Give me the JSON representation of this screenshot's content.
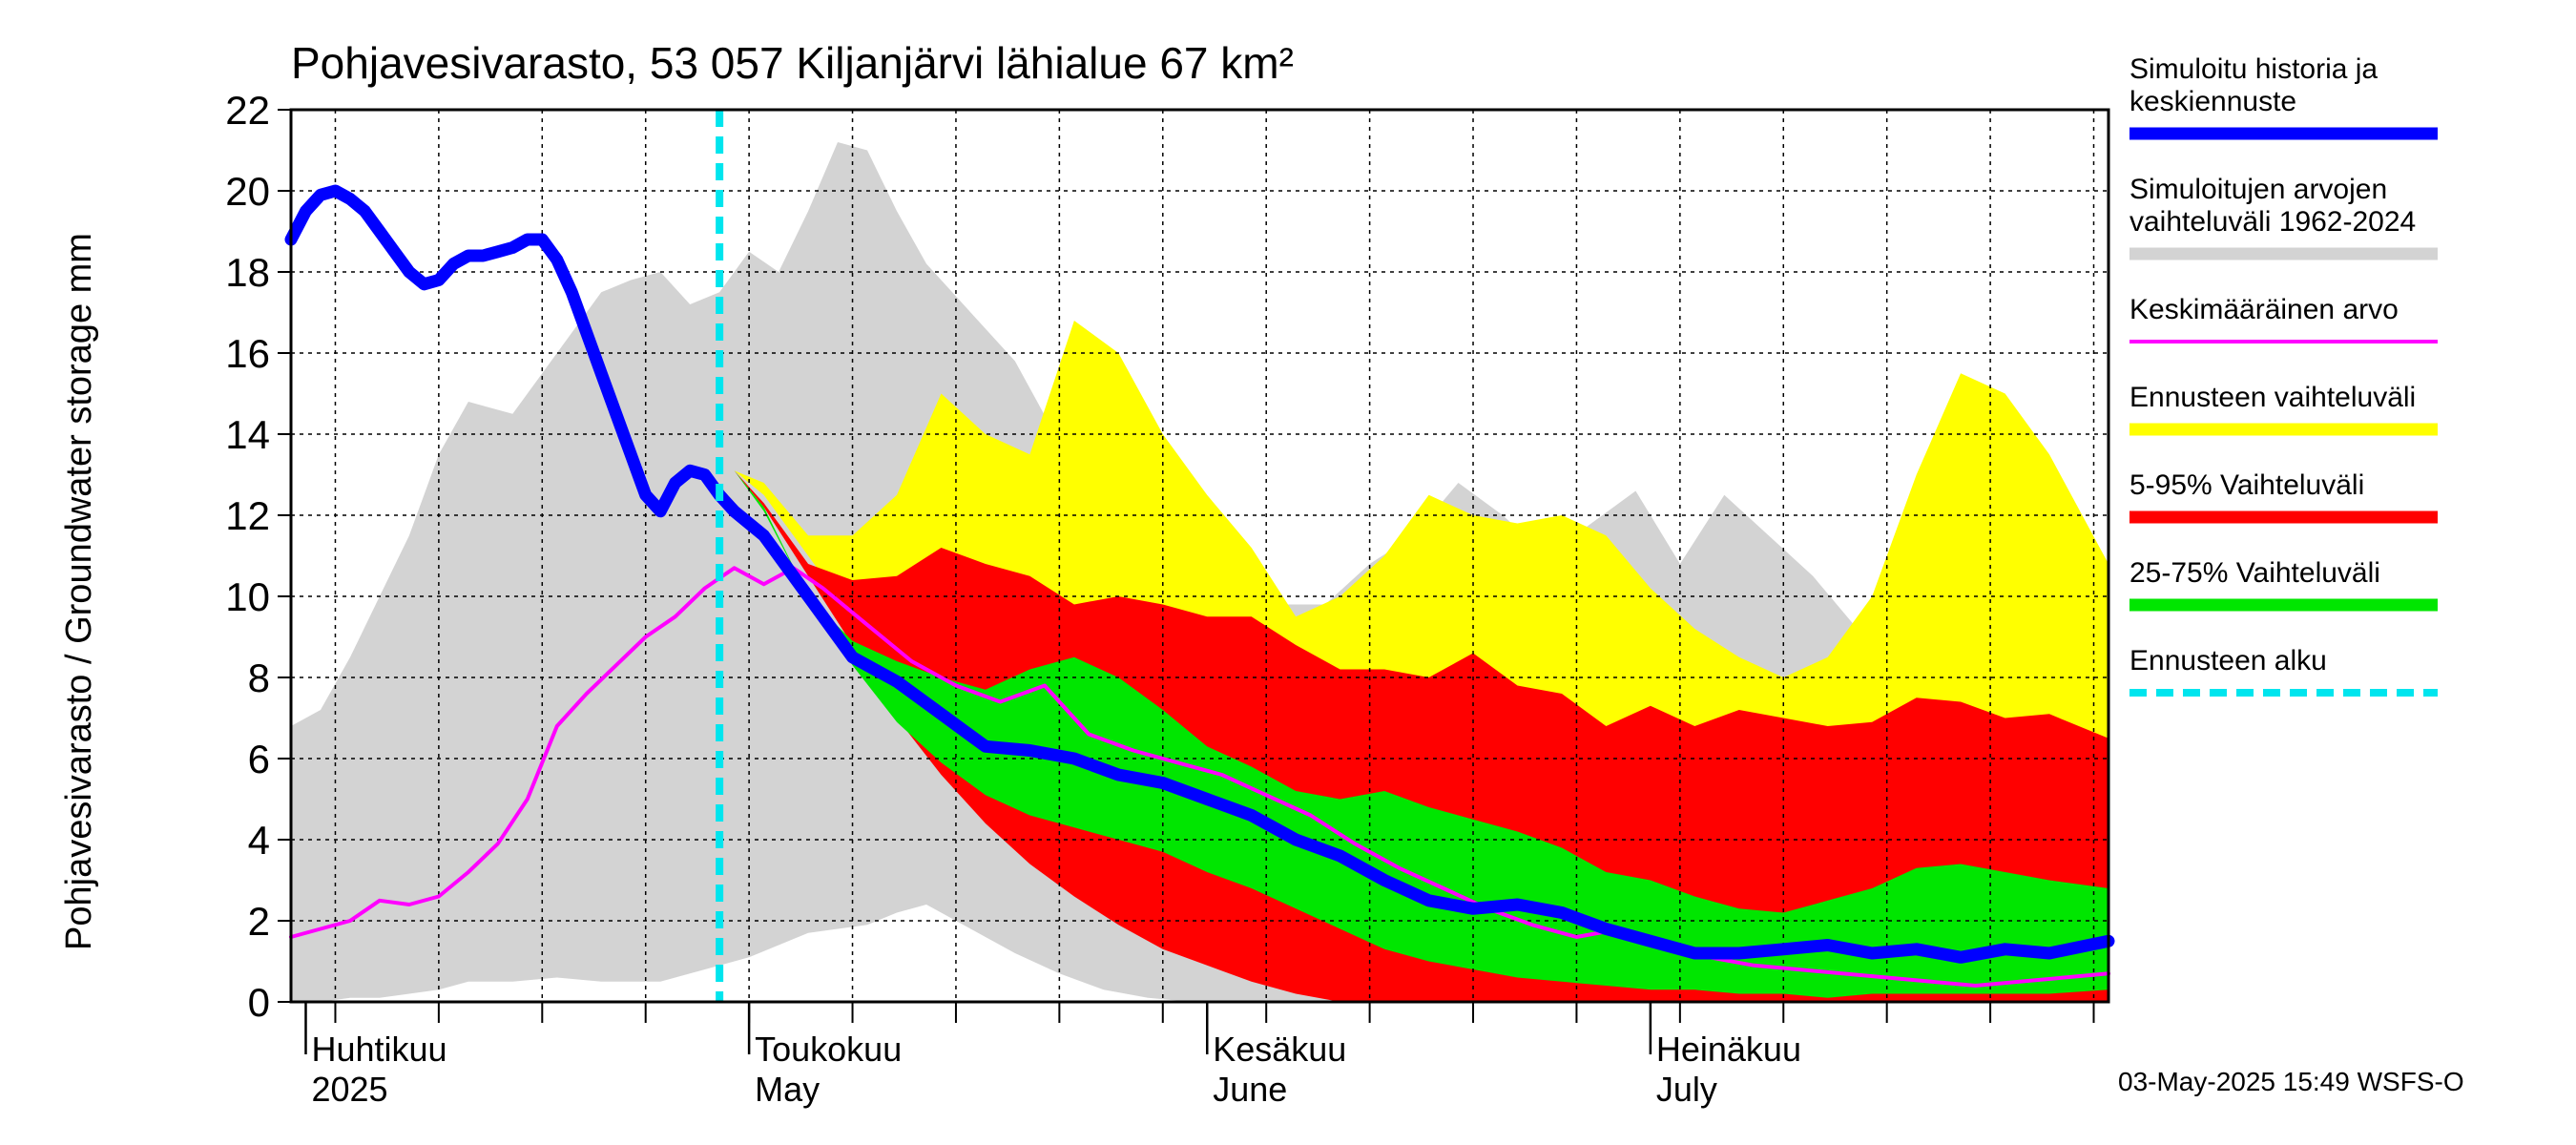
{
  "chart_data": {
    "type": "area",
    "title": "Pohjavesivarasto, 53 057 Kiljanjärvi lähialue 67 km²",
    "ylabel": "Pohjavesivarasto / Groundwater storage   mm",
    "ylim": [
      0,
      22
    ],
    "yticks": [
      0,
      2,
      4,
      6,
      8,
      10,
      12,
      14,
      16,
      18,
      20,
      22
    ],
    "x_start": "2025-03-31",
    "x_end": "2025-08-01",
    "forecast_start": "2025-04-29",
    "month_labels": [
      {
        "fi": "Huhtikuu",
        "en": "2025",
        "date": "2025-04-01"
      },
      {
        "fi": "Toukokuu",
        "en": "May",
        "date": "2025-05-01"
      },
      {
        "fi": "Kesäkuu",
        "en": "June",
        "date": "2025-06-01"
      },
      {
        "fi": "Heinäkuu",
        "en": "July",
        "date": "2025-07-01"
      }
    ],
    "series": [
      {
        "name": "Simuloitujen arvojen vaihteluväli 1962-2024",
        "color": "#d3d3d3",
        "type": "band",
        "x": [
          "2025-03-31",
          "2025-04-02",
          "2025-04-04",
          "2025-04-06",
          "2025-04-08",
          "2025-04-10",
          "2025-04-12",
          "2025-04-15",
          "2025-04-18",
          "2025-04-21",
          "2025-04-23",
          "2025-04-25",
          "2025-04-27",
          "2025-04-29",
          "2025-05-01",
          "2025-05-03",
          "2025-05-05",
          "2025-05-07",
          "2025-05-09",
          "2025-05-11",
          "2025-05-13",
          "2025-05-16",
          "2025-05-19",
          "2025-05-22",
          "2025-05-25",
          "2025-05-28",
          "2025-05-31",
          "2025-06-03",
          "2025-06-06",
          "2025-06-09",
          "2025-06-12",
          "2025-06-15",
          "2025-06-18",
          "2025-06-21",
          "2025-06-24",
          "2025-06-27",
          "2025-06-30",
          "2025-07-03",
          "2025-07-06",
          "2025-07-09",
          "2025-07-12",
          "2025-07-15",
          "2025-07-18",
          "2025-07-21",
          "2025-07-24",
          "2025-07-27",
          "2025-07-30",
          "2025-08-01"
        ],
        "upper": [
          6.8,
          7.2,
          8.5,
          10.0,
          11.5,
          13.5,
          14.8,
          14.5,
          16.0,
          17.5,
          17.8,
          18.0,
          17.2,
          17.5,
          18.5,
          18.0,
          19.5,
          21.2,
          21.0,
          19.5,
          18.2,
          17.0,
          15.8,
          13.8,
          16.2,
          13.5,
          11.8,
          10.2,
          9.8,
          9.8,
          10.8,
          11.5,
          12.8,
          12.0,
          11.0,
          11.8,
          12.6,
          10.8,
          12.5,
          11.5,
          10.5,
          9.2,
          8.6,
          8.2,
          9.0,
          9.8,
          8.2,
          6.8
        ],
        "lower": [
          0.0,
          0.0,
          0.1,
          0.1,
          0.2,
          0.3,
          0.5,
          0.5,
          0.6,
          0.5,
          0.5,
          0.5,
          0.7,
          0.9,
          1.1,
          1.4,
          1.7,
          1.8,
          1.9,
          2.2,
          2.4,
          1.8,
          1.2,
          0.7,
          0.3,
          0.1,
          0.0,
          0.0,
          0.0,
          0.0,
          0.0,
          0.0,
          0.0,
          0.0,
          0.0,
          0.0,
          0.0,
          0.0,
          0.0,
          0.0,
          0.0,
          0.0,
          0.0,
          0.0,
          0.0,
          0.0,
          0.0,
          0.0
        ]
      },
      {
        "name": "Ennusteen vaihteluväli",
        "color": "#ffff00",
        "type": "band",
        "x": [
          "2025-04-30",
          "2025-05-02",
          "2025-05-05",
          "2025-05-08",
          "2025-05-11",
          "2025-05-14",
          "2025-05-17",
          "2025-05-20",
          "2025-05-23",
          "2025-05-26",
          "2025-05-29",
          "2025-06-01",
          "2025-06-04",
          "2025-06-07",
          "2025-06-10",
          "2025-06-13",
          "2025-06-16",
          "2025-06-19",
          "2025-06-22",
          "2025-06-25",
          "2025-06-28",
          "2025-07-01",
          "2025-07-04",
          "2025-07-07",
          "2025-07-10",
          "2025-07-13",
          "2025-07-16",
          "2025-07-19",
          "2025-07-22",
          "2025-07-25",
          "2025-07-28",
          "2025-08-01"
        ],
        "upper": [
          13.1,
          12.8,
          11.5,
          11.5,
          12.5,
          15.0,
          14.0,
          13.5,
          16.8,
          16.0,
          14.0,
          12.5,
          11.2,
          9.5,
          10.0,
          11.0,
          12.5,
          12.0,
          11.8,
          12.0,
          11.5,
          10.2,
          9.2,
          8.5,
          8.0,
          8.5,
          10.0,
          13.0,
          15.5,
          15.0,
          13.5,
          10.8
        ],
        "lower": [
          13.1,
          12.5,
          11.0,
          9.5,
          7.8,
          6.2,
          4.9,
          3.9,
          3.1,
          2.4,
          1.8,
          1.2,
          0.8,
          0.4,
          0.2,
          0.0,
          0.0,
          0.0,
          0.0,
          0.0,
          0.0,
          0.0,
          0.0,
          0.0,
          0.0,
          0.0,
          0.0,
          0.0,
          0.0,
          0.0,
          0.0,
          0.0
        ]
      },
      {
        "name": "5-95% Vaihteluväli",
        "color": "#ff0000",
        "type": "band",
        "x": [
          "2025-04-30",
          "2025-05-02",
          "2025-05-05",
          "2025-05-08",
          "2025-05-11",
          "2025-05-14",
          "2025-05-17",
          "2025-05-20",
          "2025-05-23",
          "2025-05-26",
          "2025-05-29",
          "2025-06-01",
          "2025-06-04",
          "2025-06-07",
          "2025-06-10",
          "2025-06-13",
          "2025-06-16",
          "2025-06-19",
          "2025-06-22",
          "2025-06-25",
          "2025-06-28",
          "2025-07-01",
          "2025-07-04",
          "2025-07-07",
          "2025-07-10",
          "2025-07-13",
          "2025-07-16",
          "2025-07-19",
          "2025-07-22",
          "2025-07-25",
          "2025-07-28",
          "2025-08-01"
        ],
        "upper": [
          13.1,
          12.3,
          10.8,
          10.4,
          10.5,
          11.2,
          10.8,
          10.5,
          9.8,
          10.0,
          9.8,
          9.5,
          9.5,
          8.8,
          8.2,
          8.2,
          8.0,
          8.6,
          7.8,
          7.6,
          6.8,
          7.3,
          6.8,
          7.2,
          7.0,
          6.8,
          6.9,
          7.5,
          7.4,
          7.0,
          7.1,
          6.5
        ],
        "lower": [
          13.1,
          12.2,
          10.5,
          8.8,
          7.0,
          5.6,
          4.4,
          3.4,
          2.6,
          1.9,
          1.3,
          0.9,
          0.5,
          0.2,
          0.0,
          0.0,
          0.0,
          0.0,
          0.0,
          0.0,
          0.0,
          0.0,
          0.0,
          0.0,
          0.0,
          0.0,
          0.0,
          0.0,
          0.0,
          0.0,
          0.0,
          0.0
        ]
      },
      {
        "name": "25-75% Vaihteluväli",
        "color": "#00e600",
        "type": "band",
        "x": [
          "2025-04-30",
          "2025-05-02",
          "2025-05-05",
          "2025-05-08",
          "2025-05-11",
          "2025-05-14",
          "2025-05-17",
          "2025-05-20",
          "2025-05-23",
          "2025-05-26",
          "2025-05-29",
          "2025-06-01",
          "2025-06-04",
          "2025-06-07",
          "2025-06-10",
          "2025-06-13",
          "2025-06-16",
          "2025-06-19",
          "2025-06-22",
          "2025-06-25",
          "2025-06-28",
          "2025-07-01",
          "2025-07-04",
          "2025-07-07",
          "2025-07-10",
          "2025-07-13",
          "2025-07-16",
          "2025-07-19",
          "2025-07-22",
          "2025-07-25",
          "2025-07-28",
          "2025-08-01"
        ],
        "upper": [
          13.1,
          12.2,
          10.0,
          8.9,
          8.4,
          8.0,
          7.7,
          8.2,
          8.5,
          8.0,
          7.2,
          6.3,
          5.8,
          5.2,
          5.0,
          5.2,
          4.8,
          4.5,
          4.2,
          3.8,
          3.2,
          3.0,
          2.6,
          2.3,
          2.2,
          2.5,
          2.8,
          3.3,
          3.4,
          3.2,
          3.0,
          2.8
        ],
        "lower": [
          13.1,
          12.1,
          10.0,
          8.3,
          6.9,
          5.9,
          5.1,
          4.6,
          4.3,
          4.0,
          3.7,
          3.2,
          2.8,
          2.3,
          1.8,
          1.3,
          1.0,
          0.8,
          0.6,
          0.5,
          0.4,
          0.3,
          0.3,
          0.2,
          0.2,
          0.1,
          0.2,
          0.2,
          0.2,
          0.2,
          0.2,
          0.3
        ]
      },
      {
        "name": "Keskimääräinen arvo",
        "color": "#ff00ff",
        "type": "line",
        "x": [
          "2025-03-31",
          "2025-04-02",
          "2025-04-04",
          "2025-04-06",
          "2025-04-08",
          "2025-04-10",
          "2025-04-12",
          "2025-04-14",
          "2025-04-16",
          "2025-04-18",
          "2025-04-20",
          "2025-04-22",
          "2025-04-24",
          "2025-04-26",
          "2025-04-28",
          "2025-04-30",
          "2025-05-02",
          "2025-05-04",
          "2025-05-06",
          "2025-05-09",
          "2025-05-12",
          "2025-05-15",
          "2025-05-18",
          "2025-05-21",
          "2025-05-24",
          "2025-05-27",
          "2025-05-30",
          "2025-06-02",
          "2025-06-05",
          "2025-06-08",
          "2025-06-11",
          "2025-06-14",
          "2025-06-17",
          "2025-06-20",
          "2025-06-23",
          "2025-06-26",
          "2025-06-29",
          "2025-07-02",
          "2025-07-05",
          "2025-07-08",
          "2025-07-11",
          "2025-07-14",
          "2025-07-17",
          "2025-07-20",
          "2025-07-23",
          "2025-07-26",
          "2025-07-29",
          "2025-08-01"
        ],
        "values": [
          1.6,
          1.8,
          2.0,
          2.5,
          2.4,
          2.6,
          3.2,
          3.9,
          5.0,
          6.8,
          7.6,
          8.3,
          9.0,
          9.5,
          10.2,
          10.7,
          10.3,
          10.7,
          10.2,
          9.3,
          8.4,
          7.8,
          7.4,
          7.8,
          6.6,
          6.2,
          5.9,
          5.6,
          5.1,
          4.6,
          3.9,
          3.3,
          2.8,
          2.3,
          1.9,
          1.6,
          1.8,
          1.4,
          1.1,
          0.9,
          0.8,
          0.7,
          0.6,
          0.5,
          0.4,
          0.5,
          0.6,
          0.7
        ]
      },
      {
        "name": "Simuloitu historia ja keskiennuste",
        "color": "#0000ff",
        "type": "line",
        "x": [
          "2025-03-31",
          "2025-04-01",
          "2025-04-02",
          "2025-04-03",
          "2025-04-04",
          "2025-04-05",
          "2025-04-06",
          "2025-04-07",
          "2025-04-08",
          "2025-04-09",
          "2025-04-10",
          "2025-04-11",
          "2025-04-12",
          "2025-04-13",
          "2025-04-14",
          "2025-04-15",
          "2025-04-16",
          "2025-04-17",
          "2025-04-18",
          "2025-04-19",
          "2025-04-20",
          "2025-04-21",
          "2025-04-22",
          "2025-04-23",
          "2025-04-24",
          "2025-04-25",
          "2025-04-26",
          "2025-04-27",
          "2025-04-28",
          "2025-04-29",
          "2025-04-30",
          "2025-05-02",
          "2025-05-05",
          "2025-05-08",
          "2025-05-11",
          "2025-05-14",
          "2025-05-17",
          "2025-05-20",
          "2025-05-23",
          "2025-05-26",
          "2025-05-29",
          "2025-06-01",
          "2025-06-04",
          "2025-06-07",
          "2025-06-10",
          "2025-06-13",
          "2025-06-16",
          "2025-06-19",
          "2025-06-22",
          "2025-06-25",
          "2025-06-28",
          "2025-07-01",
          "2025-07-04",
          "2025-07-07",
          "2025-07-10",
          "2025-07-13",
          "2025-07-16",
          "2025-07-19",
          "2025-07-22",
          "2025-07-25",
          "2025-07-28",
          "2025-08-01"
        ],
        "values": [
          18.8,
          19.5,
          19.9,
          20.0,
          19.8,
          19.5,
          19.0,
          18.5,
          18.0,
          17.7,
          17.8,
          18.2,
          18.4,
          18.4,
          18.5,
          18.6,
          18.8,
          18.8,
          18.3,
          17.5,
          16.5,
          15.5,
          14.5,
          13.5,
          12.5,
          12.1,
          12.8,
          13.1,
          13.0,
          12.5,
          12.1,
          11.5,
          10.0,
          8.5,
          7.9,
          7.1,
          6.3,
          6.2,
          6.0,
          5.6,
          5.4,
          5.0,
          4.6,
          4.0,
          3.6,
          3.0,
          2.5,
          2.3,
          2.4,
          2.2,
          1.8,
          1.5,
          1.2,
          1.2,
          1.3,
          1.4,
          1.2,
          1.3,
          1.1,
          1.3,
          1.2,
          1.5
        ]
      }
    ],
    "legend_placement": "right",
    "grid": true
  },
  "legend": [
    {
      "label": "Simuloitu historia ja keskiennuste",
      "lines": [
        "Simuloitu historia ja",
        "keskiennuste"
      ],
      "color": "#0000ff",
      "style": "thick"
    },
    {
      "label": "Simuloitujen arvojen vaihteluväli 1962-2024",
      "lines": [
        "Simuloitujen arvojen",
        "vaihteluväli 1962-2024"
      ],
      "color": "#d3d3d3",
      "style": "thick"
    },
    {
      "label": "Keskimääräinen arvo",
      "lines": [
        "Keskimääräinen arvo"
      ],
      "color": "#ff00ff",
      "style": "thin"
    },
    {
      "label": "Ennusteen vaihteluväli",
      "lines": [
        "Ennusteen vaihteluväli"
      ],
      "color": "#ffff00",
      "style": "thick"
    },
    {
      "label": "5-95% Vaihteluväli",
      "lines": [
        "5-95% Vaihteluväli"
      ],
      "color": "#ff0000",
      "style": "thick"
    },
    {
      "label": "25-75% Vaihteluväli",
      "lines": [
        "25-75% Vaihteluväli"
      ],
      "color": "#00e600",
      "style": "thick"
    },
    {
      "label": "Ennusteen alku",
      "lines": [
        "Ennusteen alku"
      ],
      "color": "#00e5ee",
      "style": "dashed"
    }
  ],
  "footer": "03-May-2025 15:49 WSFS-O"
}
